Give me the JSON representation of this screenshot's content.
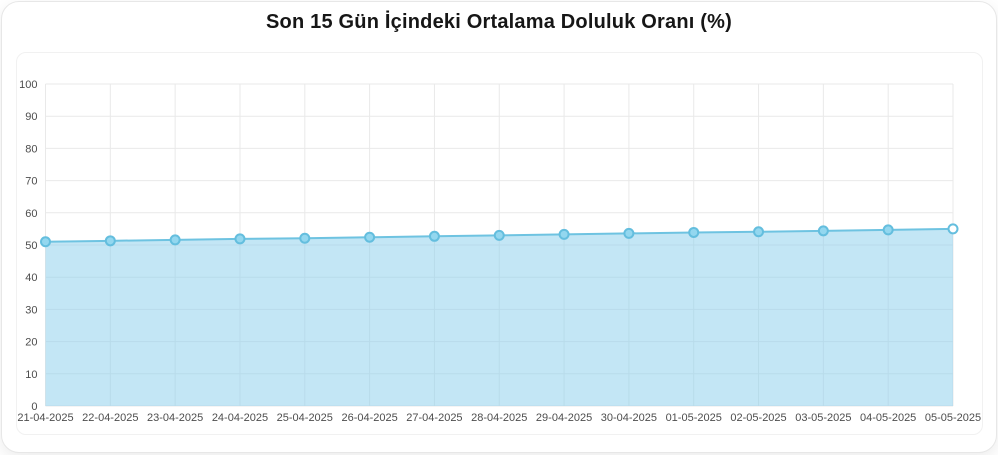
{
  "header": {
    "title": "Son 15 Gün İçindeki Ortalama Doluluk Oranı (%)"
  },
  "chart_data": {
    "type": "area",
    "title": "Son 15 Gün İçindeki Ortalama Doluluk Oranı (%)",
    "categories": [
      "21-04-2025",
      "22-04-2025",
      "23-04-2025",
      "24-04-2025",
      "25-04-2025",
      "26-04-2025",
      "27-04-2025",
      "28-04-2025",
      "29-04-2025",
      "30-04-2025",
      "01-05-2025",
      "02-05-2025",
      "03-05-2025",
      "04-05-2025",
      "05-05-2025"
    ],
    "values": [
      51.0,
      51.3,
      51.6,
      51.9,
      52.1,
      52.4,
      52.7,
      53.0,
      53.3,
      53.6,
      53.9,
      54.1,
      54.4,
      54.7,
      55.0
    ],
    "xlabel": "",
    "ylabel": "",
    "ylim": [
      0,
      100
    ],
    "y_tick_step": 10,
    "grid": true,
    "legend": "none",
    "colors": {
      "line": "#6ec3e1",
      "area_fill": "rgba(135,206,235,0.5)",
      "marker_fill": "#93d7ef",
      "marker_stroke": "#64bede",
      "last_marker_fill": "#ffffff",
      "grid_line": "#e9e9e9",
      "tick_text": "#4d4d4d"
    }
  }
}
